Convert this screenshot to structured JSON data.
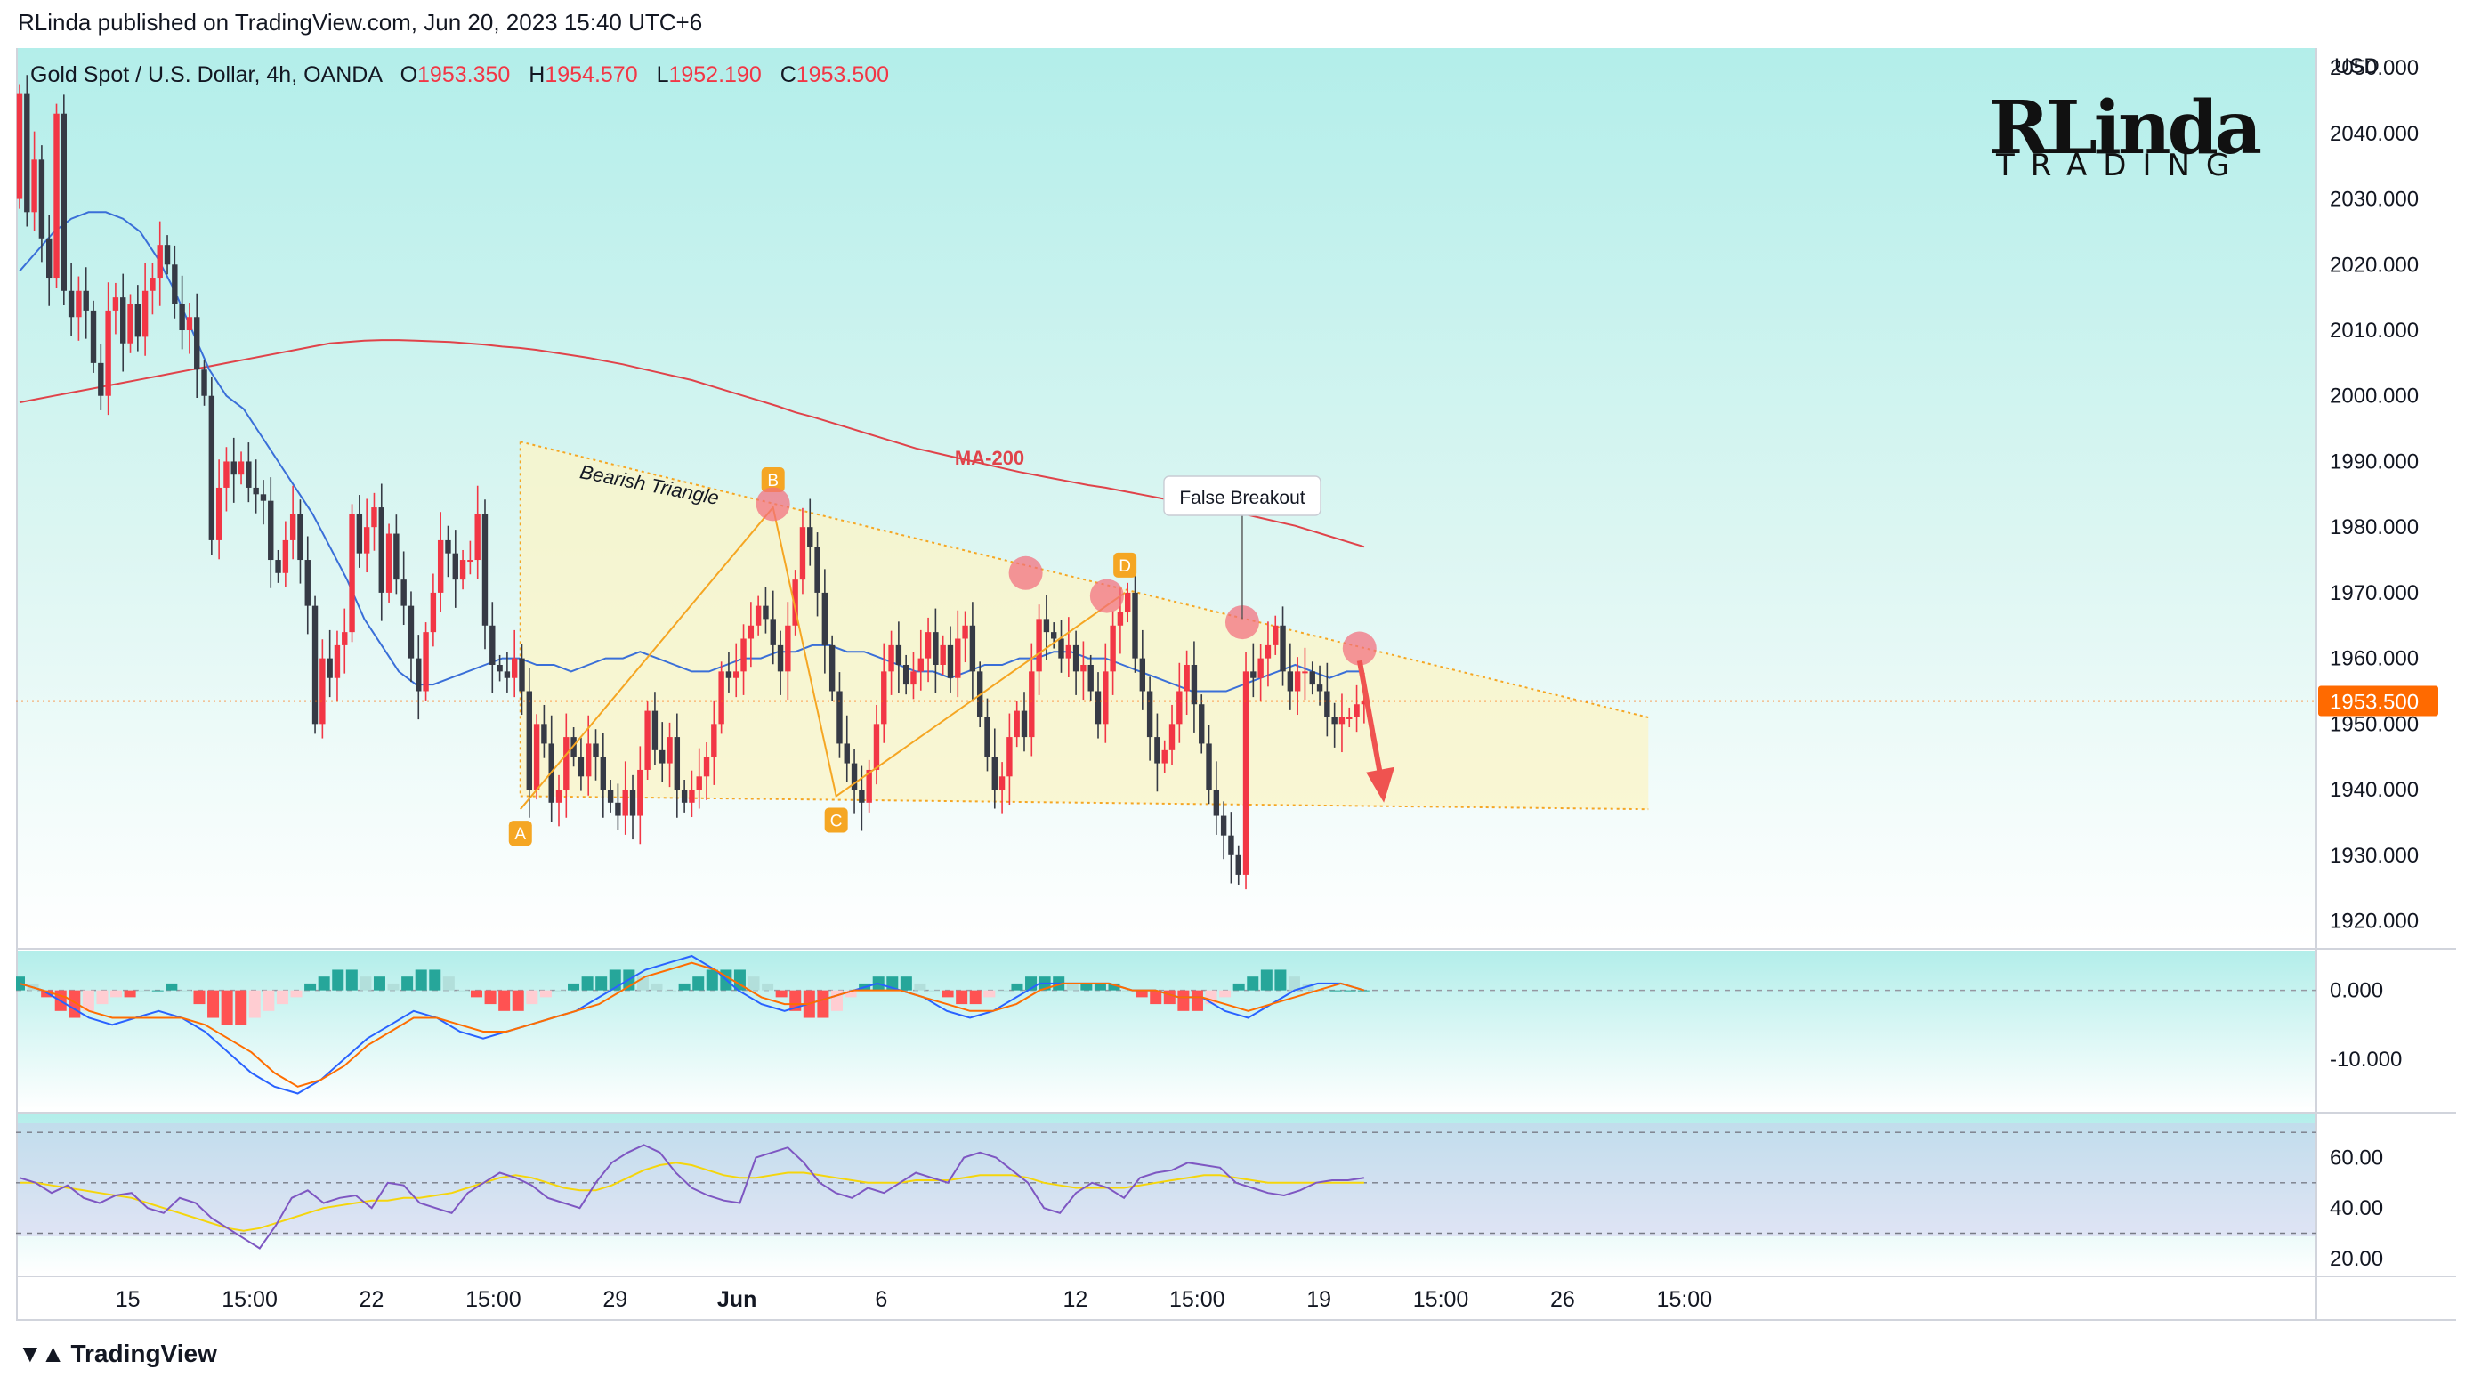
{
  "header": {
    "publisher_line": "RLinda published on TradingView.com, Jun 20, 2023 15:40 UTC+6"
  },
  "legend": {
    "symbol": "Gold Spot / U.S. Dollar, 4h, OANDA",
    "open_label": "O",
    "open": "1953.350",
    "high_label": "H",
    "high": "1954.570",
    "low_label": "L",
    "low": "1952.190",
    "close_label": "C",
    "close": "1953.500"
  },
  "logo": {
    "big": "RLinda",
    "small": "TRADING"
  },
  "footer": {
    "brand": "TradingView",
    "icon": "tradingview-logo-icon"
  },
  "colors": {
    "bull": "#f23645",
    "bear": "#363a45",
    "ma200": "#e0434a",
    "ma50": "#3a6fd8",
    "macd": "#2962ff",
    "signal": "#ff6d00",
    "rsi": "#7e57c2",
    "rsi_ma": "#f5d50c",
    "pattern": "#f5a623",
    "price_tag": "#ff6a00"
  },
  "chart_data": [
    {
      "type": "candlestick",
      "title": "Gold Spot / U.S. Dollar, 4h, OANDA",
      "currency": "USD",
      "ylim": [
        1916,
        2053
      ],
      "y_ticks": [
        "2050.000",
        "2040.000",
        "2030.000",
        "2020.000",
        "2010.000",
        "2000.000",
        "1990.000",
        "1980.000",
        "1970.000",
        "1960.000",
        "1950.000",
        "1940.000",
        "1930.000",
        "1920.000"
      ],
      "x_tick_labels": [
        {
          "label": "15",
          "bar": 24
        },
        {
          "label": "15:00",
          "bar": 51
        },
        {
          "label": "22",
          "bar": 78
        },
        {
          "label": "15:00",
          "bar": 105
        },
        {
          "label": "29",
          "bar": 132
        },
        {
          "label": "Jun",
          "bar": 159,
          "bold": true
        },
        {
          "label": "6",
          "bar": 191
        },
        {
          "label": "12",
          "bar": 234
        },
        {
          "label": "15:00",
          "bar": 261
        },
        {
          "label": "19",
          "bar": 288
        },
        {
          "label": "15:00",
          "bar": 315
        },
        {
          "label": "26",
          "bar": 342
        },
        {
          "label": "15:00",
          "bar": 369
        }
      ],
      "bars_total": 387,
      "last_price": "1953.500",
      "current_price_level": 1953.5,
      "closes": [
        2046,
        2028,
        2036,
        2024,
        2018,
        2043,
        2016,
        2012,
        2016,
        2013,
        2005,
        2000,
        2013,
        2015,
        2008,
        2014,
        2009,
        2016,
        2018,
        2023,
        2020,
        2014,
        2010,
        2012,
        2004,
        2000,
        1978,
        1986,
        1990,
        1988,
        1990,
        1986,
        1985,
        1984,
        1975,
        1973,
        1978,
        1982,
        1975,
        1968,
        1950,
        1960,
        1957,
        1962,
        1964,
        1982,
        1976,
        1980,
        1983,
        1970,
        1979,
        1972,
        1968,
        1960,
        1955,
        1964,
        1970,
        1978,
        1976,
        1972,
        1975,
        1975,
        1982,
        1965,
        1959,
        1958,
        1957,
        1960,
        1955,
        1940,
        1950,
        1947,
        1938,
        1940,
        1948,
        1945,
        1942,
        1947,
        1945,
        1940,
        1938,
        1936,
        1940,
        1936,
        1943,
        1952,
        1946,
        1944,
        1948,
        1940,
        1938,
        1940,
        1942,
        1945,
        1950,
        1958,
        1957,
        1958,
        1963,
        1965,
        1968,
        1966,
        1962,
        1958,
        1965,
        1972,
        1980,
        1977,
        1970,
        1962,
        1955,
        1947,
        1944,
        1940,
        1938,
        1943,
        1950,
        1958,
        1962,
        1959,
        1956,
        1958,
        1960,
        1964,
        1959,
        1962,
        1957,
        1963,
        1965,
        1958,
        1951,
        1945,
        1940,
        1942,
        1948,
        1952,
        1948,
        1958,
        1966,
        1964,
        1963,
        1960,
        1962,
        1958,
        1959,
        1955,
        1950,
        1958,
        1965,
        1967,
        1970,
        1960,
        1955,
        1948,
        1944,
        1946,
        1950,
        1955,
        1959,
        1953,
        1947,
        1940,
        1936,
        1933,
        1930,
        1927,
        1958,
        1957,
        1960,
        1962,
        1965,
        1958,
        1955,
        1958,
        1958,
        1956,
        1955,
        1951,
        1950,
        1951,
        1951,
        1953,
        1953.5
      ],
      "highs_offset_note": "wick extents approximate",
      "series": [
        {
          "name": "MA-200",
          "values": [
            1999,
            1999.5,
            2000,
            2000.5,
            2001,
            2001.5,
            2002,
            2002.5,
            2003,
            2003.5,
            2004,
            2004.5,
            2005,
            2005.5,
            2006,
            2006.5,
            2007,
            2007.5,
            2008,
            2008.2,
            2008.4,
            2008.5,
            2008.5,
            2008.4,
            2008.3,
            2008.2,
            2008,
            2007.8,
            2007.5,
            2007.3,
            2007,
            2006.6,
            2006.2,
            2005.8,
            2005.3,
            2004.8,
            2004.2,
            2003.6,
            2003,
            2002.4,
            2001.6,
            2000.8,
            2000,
            1999.2,
            1998.4,
            1997.5,
            1996.8,
            1996,
            1995.2,
            1994.4,
            1993.6,
            1992.8,
            1992,
            1991.4,
            1990.8,
            1990.2,
            1989.6,
            1989,
            1988.4,
            1987.9,
            1987.4,
            1986.9,
            1986.4,
            1986,
            1985.5,
            1985,
            1984.5,
            1984,
            1983.5,
            1983,
            1982.5,
            1982,
            1981.4,
            1980.8,
            1980.2,
            1979.4,
            1978.6,
            1977.8,
            1977
          ]
        },
        {
          "name": "MA-50",
          "values": [
            2019,
            2022,
            2025,
            2027,
            2028,
            2028,
            2027,
            2025,
            2021,
            2016,
            2010,
            2004,
            2000,
            1998,
            1994,
            1990,
            1986,
            1982,
            1977,
            1972,
            1966,
            1962,
            1958,
            1956,
            1956,
            1957,
            1958,
            1959,
            1960,
            1960,
            1959,
            1959,
            1958,
            1959,
            1960,
            1960,
            1961,
            1960,
            1959,
            1958,
            1958,
            1959,
            1960,
            1960,
            1961,
            1961,
            1962,
            1962,
            1961,
            1961,
            1960,
            1959,
            1958,
            1958,
            1957,
            1958,
            1959,
            1959,
            1960,
            1960,
            1961,
            1961,
            1960,
            1960,
            1959,
            1958,
            1957,
            1956,
            1955,
            1955,
            1955,
            1956,
            1957,
            1958,
            1959,
            1958,
            1957,
            1958,
            1958
          ]
        }
      ]
    },
    {
      "type": "histogram+line",
      "title": "MACD",
      "y_ticks": [
        "0.000",
        "-10.000"
      ],
      "ylim": [
        -17,
        5
      ],
      "histogram": [
        2,
        1,
        -1,
        -3,
        -4,
        -3,
        -2,
        -1,
        -1,
        0,
        0,
        1,
        0,
        -2,
        -4,
        -5,
        -5,
        -4,
        -3,
        -2,
        -1,
        1,
        2,
        3,
        3,
        2,
        2,
        1,
        2,
        3,
        3,
        2,
        0,
        -1,
        -2,
        -3,
        -3,
        -2,
        -1,
        0,
        1,
        2,
        2,
        3,
        3,
        2,
        1,
        0,
        1,
        2,
        3,
        3,
        3,
        2,
        1,
        -1,
        -3,
        -4,
        -4,
        -3,
        -1,
        1,
        2,
        2,
        2,
        1,
        0,
        -1,
        -2,
        -2,
        -1,
        0,
        1,
        2,
        2,
        2,
        1,
        1,
        1,
        1,
        0,
        -1,
        -2,
        -2,
        -3,
        -3,
        -2,
        -1,
        1,
        2,
        3,
        3,
        2,
        1,
        0,
        0,
        0,
        0
      ],
      "macd": [
        1,
        0,
        -2,
        -4,
        -5,
        -4,
        -3,
        -4,
        -6,
        -9,
        -12,
        -14,
        -15,
        -13,
        -10,
        -7,
        -5,
        -3,
        -4,
        -6,
        -7,
        -6,
        -5,
        -4,
        -3,
        -1,
        1,
        3,
        4,
        5,
        3,
        0,
        -2,
        -3,
        -2,
        -1,
        0,
        1,
        0,
        -1,
        -3,
        -4,
        -3,
        -1,
        1,
        1,
        1,
        1,
        0,
        0,
        -1,
        -1,
        -3,
        -4,
        -2,
        0,
        1,
        1,
        0
      ],
      "signal": [
        1,
        0,
        -1,
        -3,
        -4,
        -4,
        -4,
        -4,
        -5,
        -7,
        -9,
        -12,
        -14,
        -13,
        -11,
        -8,
        -6,
        -4,
        -4,
        -5,
        -6,
        -6,
        -5,
        -4,
        -3,
        -2,
        0,
        2,
        3,
        4,
        3,
        1,
        -1,
        -2,
        -2,
        -1,
        0,
        0,
        0,
        -1,
        -2,
        -3,
        -3,
        -2,
        0,
        1,
        1,
        1,
        0,
        0,
        -1,
        -1,
        -2,
        -3,
        -2,
        -1,
        0,
        1,
        0
      ]
    },
    {
      "type": "line",
      "title": "RSI",
      "y_ticks": [
        "60.00",
        "40.00",
        "20.00"
      ],
      "ylim": [
        15,
        75
      ],
      "bands": [
        30,
        50,
        70
      ],
      "rsi": [
        52,
        50,
        46,
        49,
        44,
        42,
        45,
        46,
        40,
        38,
        44,
        42,
        36,
        32,
        28,
        24,
        33,
        44,
        47,
        42,
        44,
        45,
        40,
        50,
        49,
        42,
        40,
        38,
        46,
        50,
        54,
        52,
        49,
        44,
        42,
        40,
        50,
        58,
        62,
        65,
        62,
        54,
        48,
        45,
        43,
        42,
        60,
        62,
        64,
        58,
        50,
        46,
        44,
        48,
        46,
        50,
        54,
        52,
        50,
        60,
        62,
        60,
        55,
        50,
        40,
        38,
        46,
        50,
        48,
        44,
        52,
        54,
        55,
        58,
        57,
        56,
        50,
        48,
        46,
        45,
        47,
        50,
        51,
        51,
        52
      ],
      "rsi_ma": [
        50,
        50,
        49,
        48,
        47,
        46,
        45,
        44,
        42,
        40,
        38,
        36,
        34,
        32,
        31,
        32,
        34,
        36,
        38,
        40,
        41,
        42,
        43,
        43,
        44,
        44,
        45,
        46,
        48,
        50,
        52,
        53,
        52,
        50,
        48,
        47,
        47,
        49,
        52,
        55,
        57,
        58,
        57,
        55,
        53,
        52,
        52,
        53,
        54,
        54,
        53,
        52,
        51,
        50,
        50,
        50,
        51,
        51,
        51,
        52,
        53,
        53,
        53,
        52,
        50,
        49,
        48,
        48,
        48,
        48,
        49,
        50,
        51,
        52,
        53,
        53,
        52,
        51,
        50,
        50,
        50,
        50,
        50,
        50,
        50
      ]
    }
  ],
  "annotations": {
    "pattern_label": "Bearish Triangle",
    "ma200_label": "MA-200",
    "false_breakout_label": "False Breakout",
    "points": [
      {
        "label": "A",
        "bar": 111,
        "price": 1937
      },
      {
        "label": "B",
        "bar": 167,
        "price": 1983
      },
      {
        "label": "C",
        "bar": 181,
        "price": 1939
      },
      {
        "label": "D",
        "bar": 245,
        "price": 1970
      }
    ],
    "touch_circles": [
      {
        "bar": 167,
        "price": 1983.5
      },
      {
        "bar": 223,
        "price": 1973
      },
      {
        "bar": 241,
        "price": 1969.5
      },
      {
        "bar": 271,
        "price": 1965.5
      },
      {
        "bar": 297,
        "price": 1961.5
      }
    ],
    "triangle_top": [
      {
        "bar": 111,
        "price": 1993
      },
      {
        "bar": 361,
        "price": 1951
      }
    ],
    "triangle_bottom": [
      {
        "bar": 111,
        "price": 1939
      },
      {
        "bar": 361,
        "price": 1937
      }
    ],
    "arrow": {
      "from": {
        "bar": 297,
        "price": 1961
      },
      "to": {
        "bar": 302,
        "price": 1938
      }
    }
  }
}
